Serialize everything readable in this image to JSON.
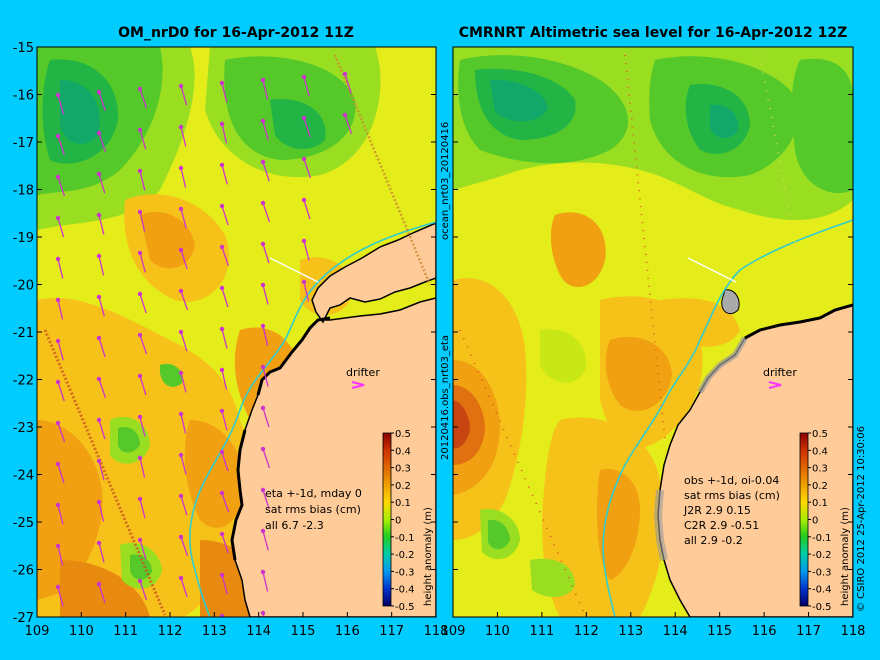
{
  "colors": {
    "background": "#00ccff",
    "land": "#ffcc99",
    "coast": "#000000",
    "drifter_marker": "#ff33ff",
    "wind_arrow": "#cc33cc",
    "current_line": "#33cccc"
  },
  "panels": [
    {
      "title": "OM_nrD0 for 16-Apr-2012 11Z",
      "has_wind_arrows": true,
      "annotation_lines": [
        "eta +-1d, mday 0",
        "sat rms bias (cm)",
        "all 6.7 -2.3"
      ]
    },
    {
      "title": "CMRNRT Altimetric sea level  for 16-Apr-2012 12Z",
      "has_wind_arrows": false,
      "annotation_lines": [
        "obs +-1d, oi-0.04",
        "sat rms bias (cm)",
        "J2R   2.9 0.15",
        "C2R   2.9 -0.51",
        "all 2.9 -0.2"
      ]
    }
  ],
  "axes": {
    "lon_range": [
      109,
      118
    ],
    "lat_range": [
      -27,
      -15
    ],
    "lon_ticks": [
      "109",
      "110",
      "111",
      "112",
      "113",
      "114",
      "115",
      "116",
      "117",
      "118"
    ],
    "lat_ticks": [
      "-15",
      "-16",
      "-17",
      "-18",
      "-19",
      "-20",
      "-21",
      "-22",
      "-23",
      "-24",
      "-25",
      "-26",
      "-27"
    ]
  },
  "colorbar": {
    "label": "height anomaly (m)",
    "ticks": [
      "0.5",
      "0.4",
      "0.3",
      "0.2",
      "0.1",
      "0",
      "-0.1",
      "-0.2",
      "-0.3",
      "-0.4",
      "-0.5"
    ]
  },
  "drifter_label": "drifter",
  "side_texts": {
    "middle_top": "ocean_nrt03_20120416",
    "middle_bottom": "20120416.obs_nrt03_eta",
    "right": "© CSIRO 2012  25-Apr-2012 10:30:06"
  }
}
